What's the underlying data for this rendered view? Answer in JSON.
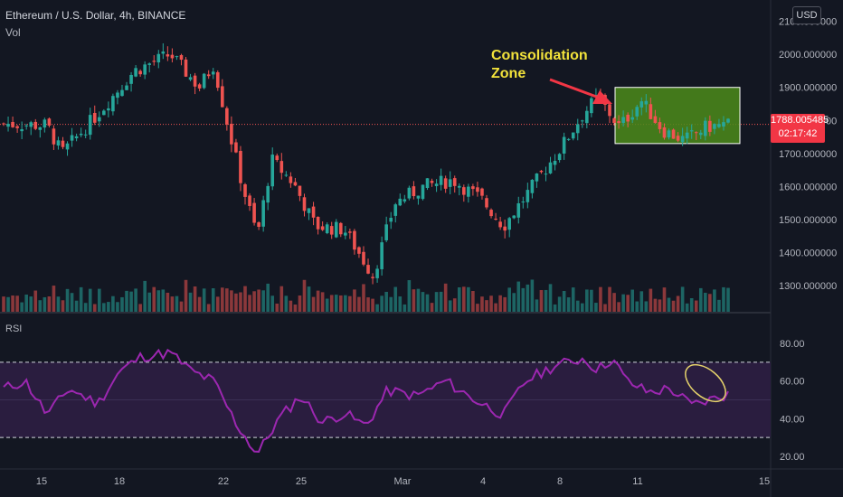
{
  "header": {
    "symbol_title": "Ethereum / U.S. Dollar, 4h, BINANCE",
    "volume_label": "Vol",
    "currency_button": "USD"
  },
  "price_tag": {
    "price": "1788.005485",
    "countdown": "02:17:42"
  },
  "annotation": {
    "line1": "Consolidation",
    "line2": "Zone"
  },
  "rsi_panel": {
    "label": "RSI"
  },
  "colors": {
    "background": "#131722",
    "up": "#26a69a",
    "down": "#ef5350",
    "rsi_line": "#9c27b0",
    "rsi_band": "#2a1d3f",
    "box_fill": "#4c8b1a",
    "annotation": "#f2e23b",
    "price_tag": "#f23645",
    "ellipse": "#e6d36b",
    "arrow": "#f23645"
  },
  "chart_data": [
    {
      "type": "candlestick",
      "title": "Ethereum / U.S. Dollar, 4h, BINANCE",
      "y_ticks": [
        "2100.000000",
        "2000.000000",
        "1900.000000",
        "1800.000000",
        "1700.000000",
        "1600.000000",
        "1500.000000",
        "1400.000000",
        "1300.000000"
      ],
      "ylim": [
        1250,
        2110
      ],
      "x_ticks": [
        "15",
        "18",
        "22",
        "25",
        "Mar",
        "4",
        "8",
        "11",
        "15"
      ],
      "last_price": 1788.005485,
      "consolidation_zone": {
        "price_top": 1900,
        "price_bottom": 1730,
        "from": "9",
        "to": "13"
      },
      "ohlc_waypoints": [
        {
          "t": 0,
          "close": 1790
        },
        {
          "t": 0.06,
          "close": 1785
        },
        {
          "t": 0.08,
          "close": 1700
        },
        {
          "t": 0.13,
          "close": 1820
        },
        {
          "t": 0.18,
          "close": 1950
        },
        {
          "t": 0.23,
          "close": 2000
        },
        {
          "t": 0.27,
          "close": 1900
        },
        {
          "t": 0.29,
          "close": 1970
        },
        {
          "t": 0.31,
          "close": 1780
        },
        {
          "t": 0.33,
          "close": 1600
        },
        {
          "t": 0.35,
          "close": 1450
        },
        {
          "t": 0.37,
          "close": 1680
        },
        {
          "t": 0.4,
          "close": 1610
        },
        {
          "t": 0.43,
          "close": 1480
        },
        {
          "t": 0.47,
          "close": 1470
        },
        {
          "t": 0.51,
          "close": 1330
        },
        {
          "t": 0.54,
          "close": 1550
        },
        {
          "t": 0.58,
          "close": 1600
        },
        {
          "t": 0.62,
          "close": 1620
        },
        {
          "t": 0.66,
          "close": 1560
        },
        {
          "t": 0.69,
          "close": 1480
        },
        {
          "t": 0.73,
          "close": 1600
        },
        {
          "t": 0.77,
          "close": 1720
        },
        {
          "t": 0.8,
          "close": 1820
        },
        {
          "t": 0.82,
          "close": 1870
        },
        {
          "t": 0.85,
          "close": 1780
        },
        {
          "t": 0.88,
          "close": 1860
        },
        {
          "t": 0.91,
          "close": 1770
        },
        {
          "t": 0.94,
          "close": 1740
        },
        {
          "t": 0.97,
          "close": 1780
        },
        {
          "t": 1.0,
          "close": 1788
        }
      ]
    },
    {
      "type": "line",
      "title": "RSI",
      "y_ticks": [
        "80.00",
        "60.00",
        "40.00",
        "20.00"
      ],
      "ylim": [
        15,
        80
      ],
      "band": [
        30,
        70
      ],
      "x_ticks": [
        "15",
        "18",
        "22",
        "25",
        "Mar",
        "4",
        "8",
        "11",
        "15"
      ],
      "waypoints": [
        {
          "t": 0,
          "v": 56
        },
        {
          "t": 0.03,
          "v": 60
        },
        {
          "t": 0.06,
          "v": 42
        },
        {
          "t": 0.09,
          "v": 56
        },
        {
          "t": 0.13,
          "v": 48
        },
        {
          "t": 0.16,
          "v": 65
        },
        {
          "t": 0.19,
          "v": 73
        },
        {
          "t": 0.23,
          "v": 75
        },
        {
          "t": 0.26,
          "v": 65
        },
        {
          "t": 0.29,
          "v": 60
        },
        {
          "t": 0.32,
          "v": 38
        },
        {
          "t": 0.35,
          "v": 21
        },
        {
          "t": 0.38,
          "v": 40
        },
        {
          "t": 0.41,
          "v": 52
        },
        {
          "t": 0.44,
          "v": 38
        },
        {
          "t": 0.47,
          "v": 43
        },
        {
          "t": 0.5,
          "v": 36
        },
        {
          "t": 0.53,
          "v": 55
        },
        {
          "t": 0.57,
          "v": 52
        },
        {
          "t": 0.61,
          "v": 60
        },
        {
          "t": 0.65,
          "v": 50
        },
        {
          "t": 0.69,
          "v": 42
        },
        {
          "t": 0.72,
          "v": 60
        },
        {
          "t": 0.76,
          "v": 68
        },
        {
          "t": 0.8,
          "v": 72
        },
        {
          "t": 0.82,
          "v": 66
        },
        {
          "t": 0.84,
          "v": 72
        },
        {
          "t": 0.86,
          "v": 60
        },
        {
          "t": 0.89,
          "v": 54
        },
        {
          "t": 0.92,
          "v": 56
        },
        {
          "t": 0.95,
          "v": 47
        },
        {
          "t": 1.0,
          "v": 53
        }
      ]
    }
  ]
}
